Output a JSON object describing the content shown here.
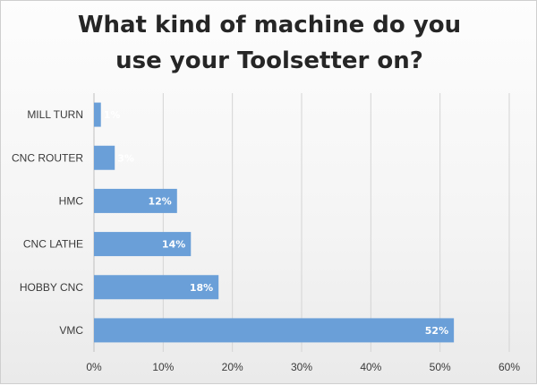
{
  "chart_data": {
    "type": "bar",
    "orientation": "horizontal",
    "title_lines": [
      "What kind of machine do you",
      "use your Toolsetter on?"
    ],
    "categories": [
      "MILL TURN",
      "CNC ROUTER",
      "HMC",
      "CNC LATHE",
      "HOBBY CNC",
      "VMC"
    ],
    "values": [
      1,
      3,
      12,
      14,
      18,
      52
    ],
    "data_labels": [
      "1%",
      "3%",
      "12%",
      "14%",
      "18%",
      "52%"
    ],
    "x_ticks": [
      "0%",
      "10%",
      "20%",
      "30%",
      "40%",
      "50%",
      "60%"
    ],
    "xlim": [
      0,
      60
    ],
    "grid": true,
    "legend": "none",
    "bar_color": "#6a9fd8"
  }
}
